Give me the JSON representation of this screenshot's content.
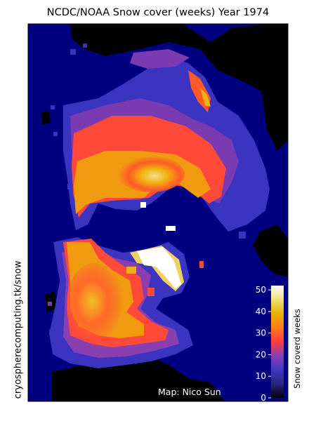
{
  "title": "NCDC/NOAA Snow cover (weeks) Year 1974",
  "side_credit": "cryospherecomputing.tk/snow",
  "map_credit": "Map: Nico Sun",
  "colorbar": {
    "label": "Snow coverd weeks",
    "min": 0,
    "max": 52,
    "ticks": [
      "0",
      "10",
      "20",
      "30",
      "40",
      "50"
    ],
    "colormap": "CMRmap"
  },
  "colors": {
    "ocean": "#000080",
    "land_no_snow": "#000000",
    "tick_text": "#ffffff"
  }
}
